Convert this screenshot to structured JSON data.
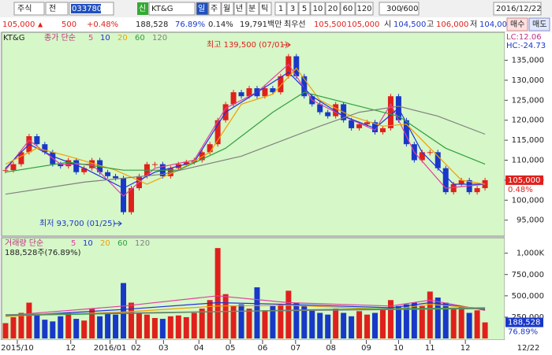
{
  "toolbar": {
    "market": "주식",
    "scope": "전",
    "code": "033780",
    "new": "신",
    "name": "KT&G",
    "periods": [
      "일",
      "주",
      "월",
      "년",
      "분",
      "틱"
    ],
    "intervals": [
      "1",
      "3",
      "5",
      "10",
      "20",
      "60",
      "120"
    ],
    "count": "300",
    "max": "/600",
    "date": "2016/12/22",
    "buy": "매수",
    "sell": "매도"
  },
  "quote": {
    "price": "105,000",
    "arrow": "▲",
    "change": "500",
    "rate": "+0.48%",
    "volume": "188,528",
    "volume_rate": "76.89%",
    "turnover": "0.14%",
    "amount": "19,791백만",
    "best": "최우선",
    "ask": "105,500",
    "bid": "105,000",
    "open_label": "시",
    "open": "104,500",
    "high_label": "고",
    "high": "106,000",
    "low_label": "저",
    "low": "104,000"
  },
  "chart_data": [
    {
      "type": "candlestick",
      "title": "KT&G",
      "legend_title": "종가 단순",
      "up_color": "#e0201c",
      "down_color": "#1838c8",
      "values": [
        107500,
        109000,
        112000,
        116000,
        114000,
        112000,
        109000,
        108500,
        110000,
        107000,
        108000,
        110000,
        107000,
        106000,
        105500,
        97000,
        103000,
        106000,
        109000,
        109000,
        106000,
        108000,
        109000,
        109500,
        110000,
        112000,
        114000,
        120000,
        124000,
        127000,
        126000,
        128000,
        126000,
        128000,
        127000,
        131000,
        136000,
        131000,
        126000,
        124000,
        122000,
        121000,
        124000,
        120000,
        118000,
        119000,
        119500,
        117000,
        118000,
        126000,
        120000,
        114000,
        110000,
        112000,
        112000,
        108000,
        102000,
        104000,
        105000,
        102000,
        103000,
        105000
      ],
      "ma_series": [
        {
          "name": "5",
          "color": "#e040a0",
          "x": [
            0,
            3,
            7,
            11,
            15,
            19,
            24,
            28,
            32,
            36,
            39,
            43,
            47,
            49,
            52,
            56,
            61
          ],
          "values": [
            107500,
            115000,
            109000,
            109000,
            101000,
            108000,
            110000,
            123000,
            127000,
            134000,
            125000,
            121000,
            117500,
            124000,
            112000,
            103000,
            104000
          ]
        },
        {
          "name": "10",
          "color": "#2030e0",
          "x": [
            0,
            3,
            6,
            10,
            15,
            19,
            24,
            28,
            32,
            36,
            39,
            43,
            47,
            50,
            53,
            57,
            61
          ],
          "values": [
            108000,
            114000,
            111000,
            108000,
            103000,
            107000,
            109500,
            122000,
            127000,
            132000,
            126000,
            121000,
            118000,
            123000,
            112000,
            104000,
            104000
          ]
        },
        {
          "name": "20",
          "color": "#f0a000",
          "x": [
            0,
            4,
            8,
            14,
            18,
            22,
            26,
            30,
            34,
            37,
            40,
            44,
            48,
            51,
            55,
            58,
            61
          ],
          "values": [
            109000,
            113000,
            111000,
            107500,
            104000,
            107500,
            112000,
            124000,
            126500,
            133000,
            125000,
            121000,
            118500,
            119000,
            111000,
            105000,
            104000
          ]
        },
        {
          "name": "60",
          "color": "#30a040",
          "x": [
            0,
            8,
            15,
            22,
            28,
            34,
            38,
            44,
            50,
            56,
            61
          ],
          "values": [
            107000,
            109500,
            107500,
            107500,
            113000,
            122000,
            127000,
            124000,
            121000,
            113000,
            109000
          ]
        },
        {
          "name": "120",
          "color": "#808080",
          "x": [
            0,
            10,
            20,
            30,
            40,
            45,
            50,
            55,
            61
          ],
          "values": [
            101500,
            104500,
            106500,
            111000,
            118500,
            122000,
            123500,
            121000,
            116500
          ]
        }
      ],
      "xlim": [
        -0.5,
        63.5
      ],
      "ylim": [
        91000,
        142000
      ],
      "yticks": [
        {
          "value": 95000,
          "label": "95,000"
        },
        {
          "value": 100000,
          "label": "100,000"
        },
        {
          "value": 105000,
          "label": "105,000"
        },
        {
          "value": 110000,
          "label": "110,000"
        },
        {
          "value": 115000,
          "label": "115,000"
        },
        {
          "value": 120000,
          "label": "120,000"
        },
        {
          "value": 125000,
          "label": "125,000"
        },
        {
          "value": 130000,
          "label": "130,000"
        },
        {
          "value": 135000,
          "label": "135,000"
        }
      ],
      "annotations": [
        "최고 139,500 (07/01)",
        "최저 93,700 (01/25)"
      ],
      "indicators": [
        "LC:12.06",
        "HC:-24.73"
      ],
      "last_label": "105,000",
      "last_rate": "0.48%"
    },
    {
      "type": "bar",
      "legend_title": "거래량 단순",
      "summary": "188,528주(76.89%)",
      "values": [
        180000,
        250000,
        300000,
        420000,
        280000,
        220000,
        200000,
        260000,
        300000,
        230000,
        210000,
        350000,
        260000,
        300000,
        280000,
        650000,
        420000,
        300000,
        280000,
        240000,
        230000,
        260000,
        270000,
        250000,
        300000,
        350000,
        450000,
        1060000,
        520000,
        380000,
        400000,
        350000,
        600000,
        330000,
        380000,
        400000,
        560000,
        420000,
        380000,
        330000,
        300000,
        280000,
        350000,
        300000,
        260000,
        320000,
        280000,
        300000,
        340000,
        450000,
        380000,
        400000,
        420000,
        380000,
        550000,
        480000,
        420000,
        350000,
        380000,
        300000,
        330000,
        188528
      ],
      "ma_series": [
        {
          "name": "5",
          "color": "#e040a0",
          "x": [
            0,
            15,
            27,
            36,
            49,
            54,
            61
          ],
          "values": [
            270000,
            380000,
            500000,
            420000,
            380000,
            450000,
            330000
          ]
        },
        {
          "name": "10",
          "color": "#2030e0",
          "x": [
            0,
            15,
            27,
            36,
            49,
            54,
            61
          ],
          "values": [
            260000,
            340000,
            420000,
            400000,
            360000,
            420000,
            340000
          ]
        },
        {
          "name": "20",
          "color": "#f0a000",
          "x": [
            0,
            15,
            27,
            36,
            49,
            54,
            61
          ],
          "values": [
            260000,
            310000,
            380000,
            390000,
            340000,
            400000,
            350000
          ]
        },
        {
          "name": "60",
          "color": "#30a040",
          "x": [
            0,
            20,
            40,
            61
          ],
          "values": [
            270000,
            300000,
            340000,
            360000
          ]
        },
        {
          "name": "120",
          "color": "#808080",
          "x": [
            0,
            30,
            61
          ],
          "values": [
            280000,
            320000,
            350000
          ]
        }
      ],
      "xlim": [
        -0.5,
        63.5
      ],
      "ylim": [
        0,
        1200000
      ],
      "yticks": [
        {
          "value": 250000,
          "label": "250,000"
        },
        {
          "value": 500000,
          "label": "500,000"
        },
        {
          "value": 750000,
          "label": "750,000"
        },
        {
          "value": 1000000,
          "label": "1,000K"
        }
      ],
      "xticks": [
        {
          "value": 1.5,
          "label": "2015/10"
        },
        {
          "value": 8.3,
          "label": "12"
        },
        {
          "value": 13.3,
          "label": "2016/01"
        },
        {
          "value": 16.6,
          "label": "02"
        },
        {
          "value": 20.1,
          "label": "03"
        },
        {
          "value": 24.6,
          "label": "04"
        },
        {
          "value": 28.6,
          "label": "05"
        },
        {
          "value": 32.7,
          "label": "06"
        },
        {
          "value": 36.9,
          "label": "07"
        },
        {
          "value": 41.4,
          "label": "08"
        },
        {
          "value": 45.9,
          "label": "09"
        },
        {
          "value": 50,
          "label": "10"
        },
        {
          "value": 54,
          "label": "11"
        },
        {
          "value": 58.5,
          "label": "12"
        }
      ],
      "last_label": "188,528",
      "last_rate": "76.89%",
      "date_label": "12/22"
    }
  ]
}
